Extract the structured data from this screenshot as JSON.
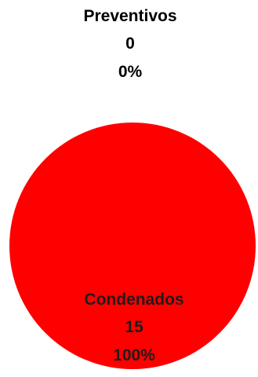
{
  "chart_data": {
    "type": "pie",
    "title": "",
    "slices": [
      {
        "label": "Preventivos",
        "value": 0,
        "percent_label": "0%",
        "value_label": "0",
        "color": "#ffffff"
      },
      {
        "label": "Condenados",
        "value": 15,
        "percent_label": "100%",
        "value_label": "15",
        "color": "#ff0000"
      }
    ],
    "legend": false
  }
}
